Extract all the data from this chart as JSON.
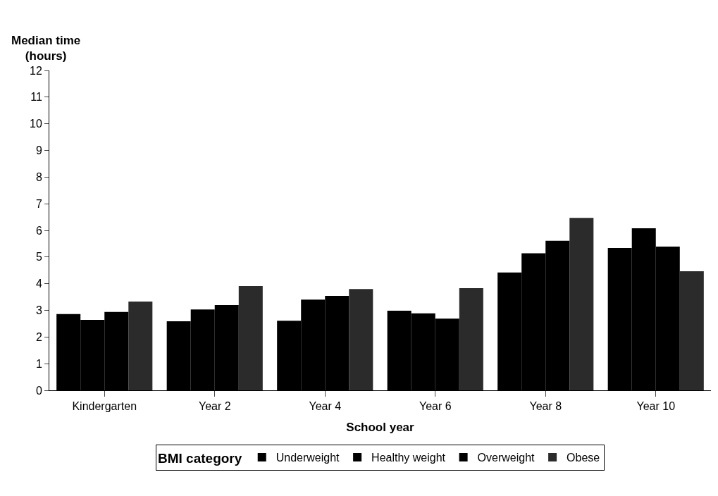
{
  "chart_data": {
    "type": "bar",
    "xlabel": "School year",
    "ylabel": "Median time\n(hours)",
    "legend_title": "BMI category",
    "categories": [
      "Kindergarten",
      "Year 2",
      "Year 4",
      "Year 6",
      "Year 8",
      "Year 10"
    ],
    "series": [
      {
        "name": "Underweight",
        "color": "#000000",
        "values": [
          2.86,
          2.59,
          2.61,
          2.99,
          4.42,
          5.34
        ]
      },
      {
        "name": "Healthy weight",
        "color": "#000000",
        "values": [
          2.64,
          3.03,
          3.4,
          2.89,
          5.14,
          6.08
        ]
      },
      {
        "name": "Overweight",
        "color": "#000000",
        "values": [
          2.94,
          3.2,
          3.54,
          2.69,
          5.61,
          5.39
        ]
      },
      {
        "name": "Obese",
        "color": "#2b2b2b",
        "values": [
          3.33,
          3.91,
          3.8,
          3.83,
          6.47,
          4.47
        ]
      }
    ],
    "ylim": [
      0,
      12
    ],
    "yticks": [
      0,
      1,
      2,
      3,
      4,
      5,
      6,
      7,
      8,
      9,
      10,
      11,
      12
    ],
    "legend": "bottom"
  }
}
